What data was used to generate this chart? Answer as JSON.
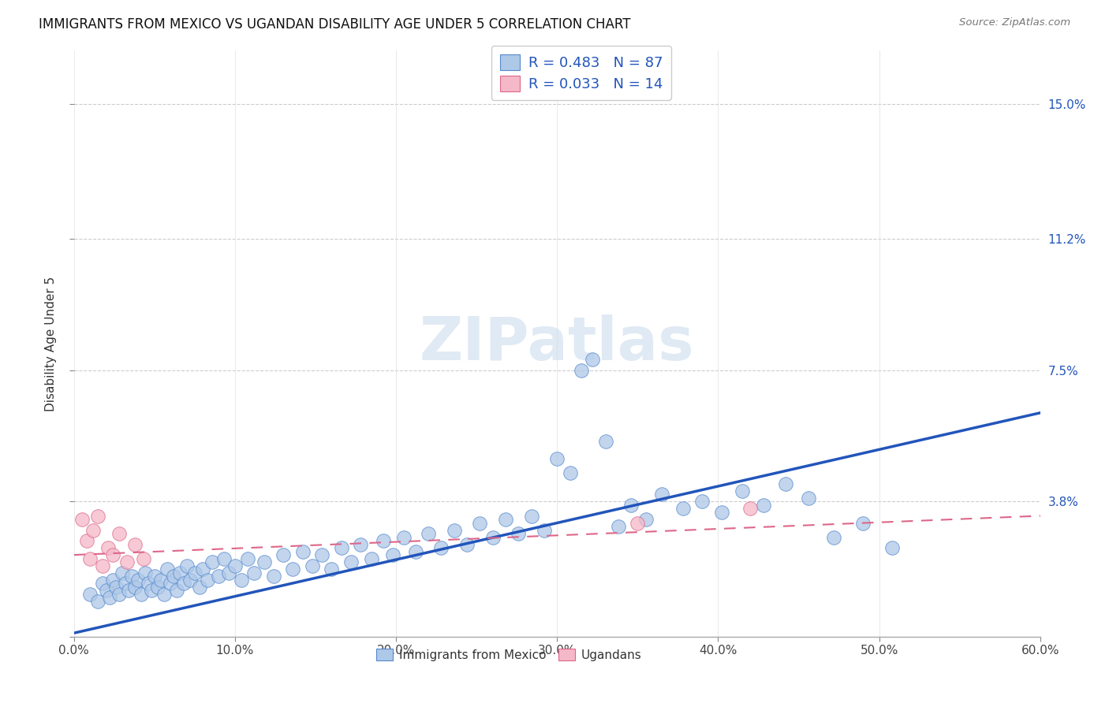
{
  "title": "IMMIGRANTS FROM MEXICO VS UGANDAN DISABILITY AGE UNDER 5 CORRELATION CHART",
  "source": "Source: ZipAtlas.com",
  "ylabel": "Disability Age Under 5",
  "x_min": 0.0,
  "x_max": 0.6,
  "y_min": 0.0,
  "y_max": 0.165,
  "x_ticks": [
    0.0,
    0.1,
    0.2,
    0.3,
    0.4,
    0.5,
    0.6
  ],
  "x_tick_labels": [
    "0.0%",
    "10.0%",
    "20.0%",
    "30.0%",
    "40.0%",
    "50.0%",
    "60.0%"
  ],
  "y_tick_positions": [
    0.0,
    0.038,
    0.075,
    0.112,
    0.15
  ],
  "y_tick_labels": [
    "",
    "3.8%",
    "7.5%",
    "11.2%",
    "15.0%"
  ],
  "legend_label1": "Immigrants from Mexico",
  "legend_label2": "Ugandans",
  "blue_color": "#aec8e8",
  "blue_edge_color": "#5588cc",
  "blue_line_color": "#2255bb",
  "pink_color": "#f5b8c8",
  "pink_edge_color": "#dd6688",
  "pink_line_color": "#dd6688",
  "watermark": "ZIPatlas",
  "blue_line_y0": 0.001,
  "blue_line_y1": 0.063,
  "pink_line_y0": 0.023,
  "pink_line_y1": 0.034,
  "blue_x": [
    0.01,
    0.015,
    0.018,
    0.02,
    0.022,
    0.024,
    0.026,
    0.028,
    0.03,
    0.032,
    0.034,
    0.036,
    0.038,
    0.04,
    0.042,
    0.044,
    0.046,
    0.048,
    0.05,
    0.052,
    0.054,
    0.056,
    0.058,
    0.06,
    0.062,
    0.064,
    0.066,
    0.068,
    0.07,
    0.072,
    0.075,
    0.078,
    0.08,
    0.083,
    0.086,
    0.09,
    0.093,
    0.096,
    0.1,
    0.104,
    0.108,
    0.112,
    0.118,
    0.124,
    0.13,
    0.136,
    0.142,
    0.148,
    0.154,
    0.16,
    0.166,
    0.172,
    0.178,
    0.185,
    0.192,
    0.198,
    0.205,
    0.212,
    0.22,
    0.228,
    0.236,
    0.244,
    0.252,
    0.26,
    0.268,
    0.276,
    0.284,
    0.292,
    0.3,
    0.308,
    0.315,
    0.322,
    0.33,
    0.338,
    0.346,
    0.355,
    0.365,
    0.378,
    0.39,
    0.402,
    0.415,
    0.428,
    0.442,
    0.456,
    0.472,
    0.49,
    0.508
  ],
  "blue_y": [
    0.012,
    0.01,
    0.015,
    0.013,
    0.011,
    0.016,
    0.014,
    0.012,
    0.018,
    0.015,
    0.013,
    0.017,
    0.014,
    0.016,
    0.012,
    0.018,
    0.015,
    0.013,
    0.017,
    0.014,
    0.016,
    0.012,
    0.019,
    0.015,
    0.017,
    0.013,
    0.018,
    0.015,
    0.02,
    0.016,
    0.018,
    0.014,
    0.019,
    0.016,
    0.021,
    0.017,
    0.022,
    0.018,
    0.02,
    0.016,
    0.022,
    0.018,
    0.021,
    0.017,
    0.023,
    0.019,
    0.024,
    0.02,
    0.023,
    0.019,
    0.025,
    0.021,
    0.026,
    0.022,
    0.027,
    0.023,
    0.028,
    0.024,
    0.029,
    0.025,
    0.03,
    0.026,
    0.032,
    0.028,
    0.033,
    0.029,
    0.034,
    0.03,
    0.05,
    0.046,
    0.075,
    0.078,
    0.055,
    0.031,
    0.037,
    0.033,
    0.04,
    0.036,
    0.038,
    0.035,
    0.041,
    0.037,
    0.043,
    0.039,
    0.028,
    0.032,
    0.025
  ],
  "pink_x": [
    0.005,
    0.008,
    0.01,
    0.012,
    0.015,
    0.018,
    0.021,
    0.024,
    0.028,
    0.033,
    0.038,
    0.043,
    0.35,
    0.42
  ],
  "pink_y": [
    0.033,
    0.027,
    0.022,
    0.03,
    0.034,
    0.02,
    0.025,
    0.023,
    0.029,
    0.021,
    0.026,
    0.022,
    0.032,
    0.036
  ]
}
